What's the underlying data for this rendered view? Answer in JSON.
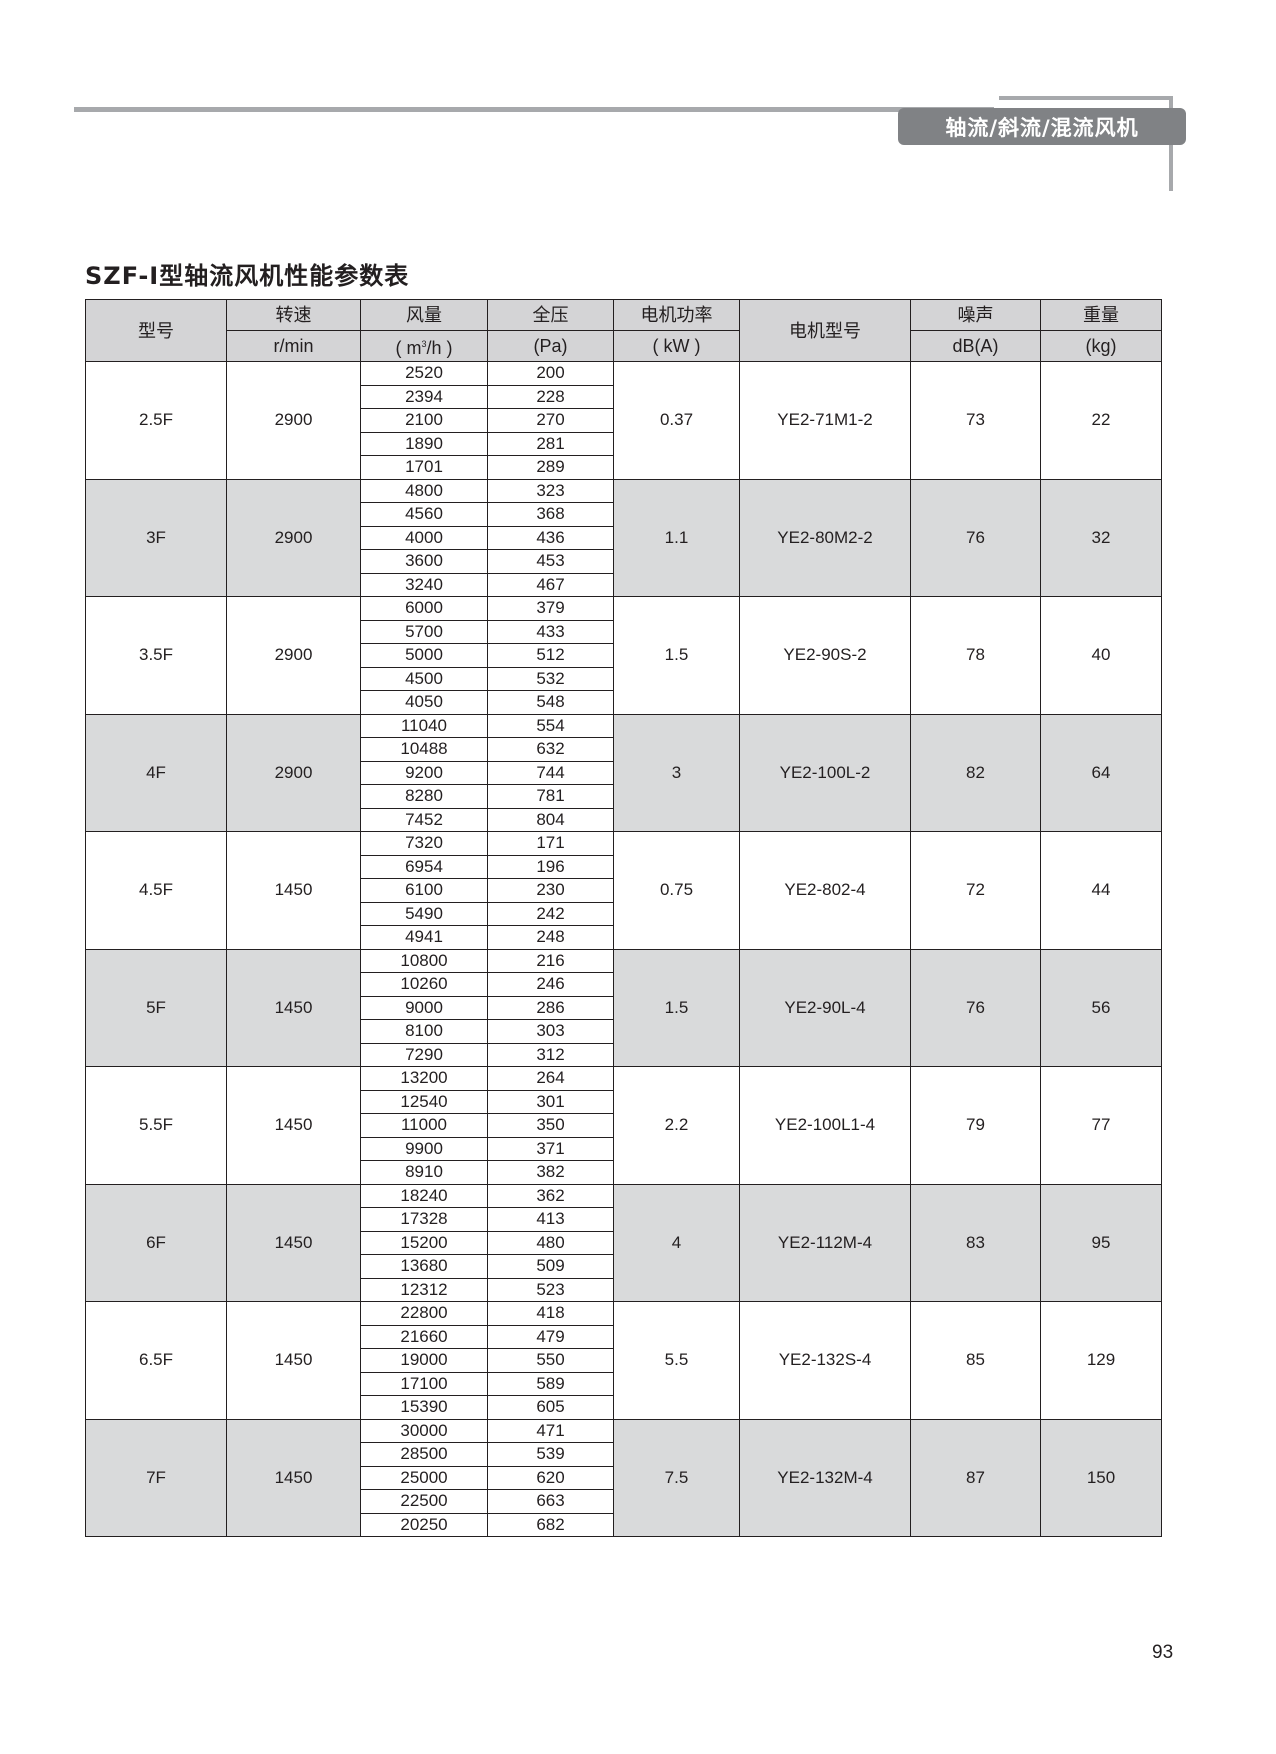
{
  "header": {
    "section_tab": "轴流/斜流/混流风机"
  },
  "title": "SZF-I型轴流风机性能参数表",
  "table": {
    "columns": {
      "model": "型号",
      "speed": "转速",
      "speed_unit": "r/min",
      "airflow": "风量",
      "airflow_unit_pre": "( m",
      "airflow_unit_sup": "3",
      "airflow_unit_post": "/h )",
      "pressure": "全压",
      "pressure_unit": "(Pa)",
      "power": "电机功率",
      "power_unit": "( kW )",
      "motor": "电机型号",
      "noise": "噪声",
      "noise_unit": "dB(A)",
      "weight": "重量",
      "weight_unit": "(kg)"
    },
    "rows": [
      {
        "model": "2.5F",
        "speed": "2900",
        "airflow": [
          "2520",
          "2394",
          "2100",
          "1890",
          "1701"
        ],
        "pressure": [
          "200",
          "228",
          "270",
          "281",
          "289"
        ],
        "power": "0.37",
        "motor": "YE2-71M1-2",
        "noise": "73",
        "weight": "22"
      },
      {
        "model": "3F",
        "speed": "2900",
        "airflow": [
          "4800",
          "4560",
          "4000",
          "3600",
          "3240"
        ],
        "pressure": [
          "323",
          "368",
          "436",
          "453",
          "467"
        ],
        "power": "1.1",
        "motor": "YE2-80M2-2",
        "noise": "76",
        "weight": "32"
      },
      {
        "model": "3.5F",
        "speed": "2900",
        "airflow": [
          "6000",
          "5700",
          "5000",
          "4500",
          "4050"
        ],
        "pressure": [
          "379",
          "433",
          "512",
          "532",
          "548"
        ],
        "power": "1.5",
        "motor": "YE2-90S-2",
        "noise": "78",
        "weight": "40"
      },
      {
        "model": "4F",
        "speed": "2900",
        "airflow": [
          "11040",
          "10488",
          "9200",
          "8280",
          "7452"
        ],
        "pressure": [
          "554",
          "632",
          "744",
          "781",
          "804"
        ],
        "power": "3",
        "motor": "YE2-100L-2",
        "noise": "82",
        "weight": "64"
      },
      {
        "model": "4.5F",
        "speed": "1450",
        "airflow": [
          "7320",
          "6954",
          "6100",
          "5490",
          "4941"
        ],
        "pressure": [
          "171",
          "196",
          "230",
          "242",
          "248"
        ],
        "power": "0.75",
        "motor": "YE2-802-4",
        "noise": "72",
        "weight": "44"
      },
      {
        "model": "5F",
        "speed": "1450",
        "airflow": [
          "10800",
          "10260",
          "9000",
          "8100",
          "7290"
        ],
        "pressure": [
          "216",
          "246",
          "286",
          "303",
          "312"
        ],
        "power": "1.5",
        "motor": "YE2-90L-4",
        "noise": "76",
        "weight": "56"
      },
      {
        "model": "5.5F",
        "speed": "1450",
        "airflow": [
          "13200",
          "12540",
          "11000",
          "9900",
          "8910"
        ],
        "pressure": [
          "264",
          "301",
          "350",
          "371",
          "382"
        ],
        "power": "2.2",
        "motor": "YE2-100L1-4",
        "noise": "79",
        "weight": "77"
      },
      {
        "model": "6F",
        "speed": "1450",
        "airflow": [
          "18240",
          "17328",
          "15200",
          "13680",
          "12312"
        ],
        "pressure": [
          "362",
          "413",
          "480",
          "509",
          "523"
        ],
        "power": "4",
        "motor": "YE2-112M-4",
        "noise": "83",
        "weight": "95"
      },
      {
        "model": "6.5F",
        "speed": "1450",
        "airflow": [
          "22800",
          "21660",
          "19000",
          "17100",
          "15390"
        ],
        "pressure": [
          "418",
          "479",
          "550",
          "589",
          "605"
        ],
        "power": "5.5",
        "motor": "YE2-132S-4",
        "noise": "85",
        "weight": "129"
      },
      {
        "model": "7F",
        "speed": "1450",
        "airflow": [
          "30000",
          "28500",
          "25000",
          "22500",
          "20250"
        ],
        "pressure": [
          "471",
          "539",
          "620",
          "663",
          "682"
        ],
        "power": "7.5",
        "motor": "YE2-132M-4",
        "noise": "87",
        "weight": "150"
      }
    ]
  },
  "page_number": "93"
}
